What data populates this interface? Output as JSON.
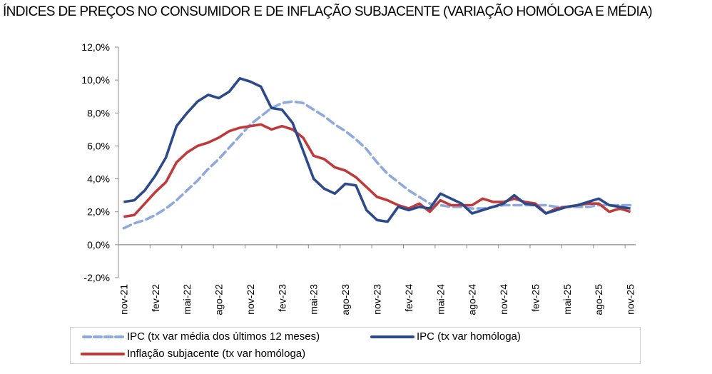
{
  "chart_data": {
    "type": "line",
    "title": "ÍNDICES DE PREÇOS NO CONSUMIDOR E DE INFLAÇÃO SUBJACENTE (VARIAÇÃO HOMÓLOGA E MÉDIA)",
    "xlabel": "",
    "ylabel": "",
    "ylim": [
      -2,
      12
    ],
    "yticks": [
      -2,
      0,
      2,
      4,
      6,
      8,
      10,
      12
    ],
    "ytick_labels": [
      "-2,0%",
      "0,0%",
      "2,0%",
      "4,0%",
      "6,0%",
      "8,0%",
      "10,0%",
      "12,0%"
    ],
    "grid": false,
    "legend_position": "bottom",
    "x": [
      "nov-21",
      "dez-21",
      "jan-22",
      "fev-22",
      "mar-22",
      "abr-22",
      "mai-22",
      "jun-22",
      "jul-22",
      "ago-22",
      "set-22",
      "out-22",
      "nov-22",
      "dez-22",
      "jan-23",
      "fev-23",
      "mar-23",
      "abr-23",
      "mai-23",
      "jun-23",
      "jul-23",
      "ago-23",
      "set-23",
      "out-23",
      "nov-23",
      "dez-23",
      "jan-24",
      "fev-24",
      "mar-24",
      "abr-24",
      "mai-24",
      "jun-24",
      "jul-24",
      "ago-24",
      "set-24",
      "out-24",
      "nov-24",
      "dez-24",
      "jan-25",
      "fev-25",
      "mar-25",
      "abr-25",
      "mai-25",
      "jun-25",
      "jul-25",
      "ago-25",
      "set-25",
      "out-25",
      "nov-25"
    ],
    "xtick_labels": [
      "nov-21",
      "fev-22",
      "mai-22",
      "ago-22",
      "nov-22",
      "fev-23",
      "mai-23",
      "ago-23",
      "nov-23",
      "fev-24",
      "mai-24",
      "ago-24",
      "nov-24",
      "fev-25",
      "mai-25",
      "ago-25",
      "nov-25"
    ],
    "series": [
      {
        "name": "IPC (tx var média dos últimos 12 meses)",
        "color": "#8eaadc",
        "style": "dashed",
        "values": [
          1.0,
          1.3,
          1.5,
          1.8,
          2.2,
          2.7,
          3.3,
          3.9,
          4.6,
          5.2,
          5.9,
          6.6,
          7.3,
          7.8,
          8.3,
          8.6,
          8.7,
          8.6,
          8.2,
          7.8,
          7.3,
          6.9,
          6.4,
          5.8,
          5.0,
          4.3,
          3.8,
          3.3,
          2.9,
          2.5,
          2.4,
          2.3,
          2.3,
          2.2,
          2.2,
          2.3,
          2.4,
          2.4,
          2.4,
          2.4,
          2.4,
          2.3,
          2.3,
          2.3,
          2.3,
          2.4,
          2.4,
          2.4,
          2.4
        ]
      },
      {
        "name": "IPC (tx var homóloga)",
        "color": "#2c4a8a",
        "style": "solid",
        "values": [
          2.6,
          2.7,
          3.3,
          4.2,
          5.3,
          7.2,
          8.0,
          8.7,
          9.1,
          8.9,
          9.3,
          10.1,
          9.9,
          9.6,
          8.3,
          8.2,
          7.4,
          5.7,
          4.0,
          3.4,
          3.1,
          3.7,
          3.6,
          2.1,
          1.5,
          1.4,
          2.3,
          2.1,
          2.3,
          2.2,
          3.1,
          2.8,
          2.5,
          1.9,
          2.1,
          2.3,
          2.5,
          3.0,
          2.5,
          2.4,
          1.9,
          2.1,
          2.3,
          2.4,
          2.6,
          2.8,
          2.4,
          2.3,
          2.2
        ]
      },
      {
        "name": "Inflação subjacente (tx var homóloga)",
        "color": "#bf3a3a",
        "style": "solid",
        "values": [
          1.7,
          1.8,
          2.5,
          3.2,
          3.8,
          5.0,
          5.6,
          6.0,
          6.2,
          6.5,
          6.9,
          7.1,
          7.2,
          7.3,
          7.0,
          7.2,
          7.0,
          6.5,
          5.4,
          5.2,
          4.7,
          4.5,
          4.1,
          3.5,
          2.9,
          2.7,
          2.4,
          2.2,
          2.5,
          2.0,
          2.7,
          2.4,
          2.4,
          2.4,
          2.8,
          2.6,
          2.6,
          2.8,
          2.6,
          2.5,
          1.9,
          2.2,
          2.3,
          2.4,
          2.5,
          2.5,
          2.0,
          2.2,
          2.0
        ]
      }
    ]
  }
}
